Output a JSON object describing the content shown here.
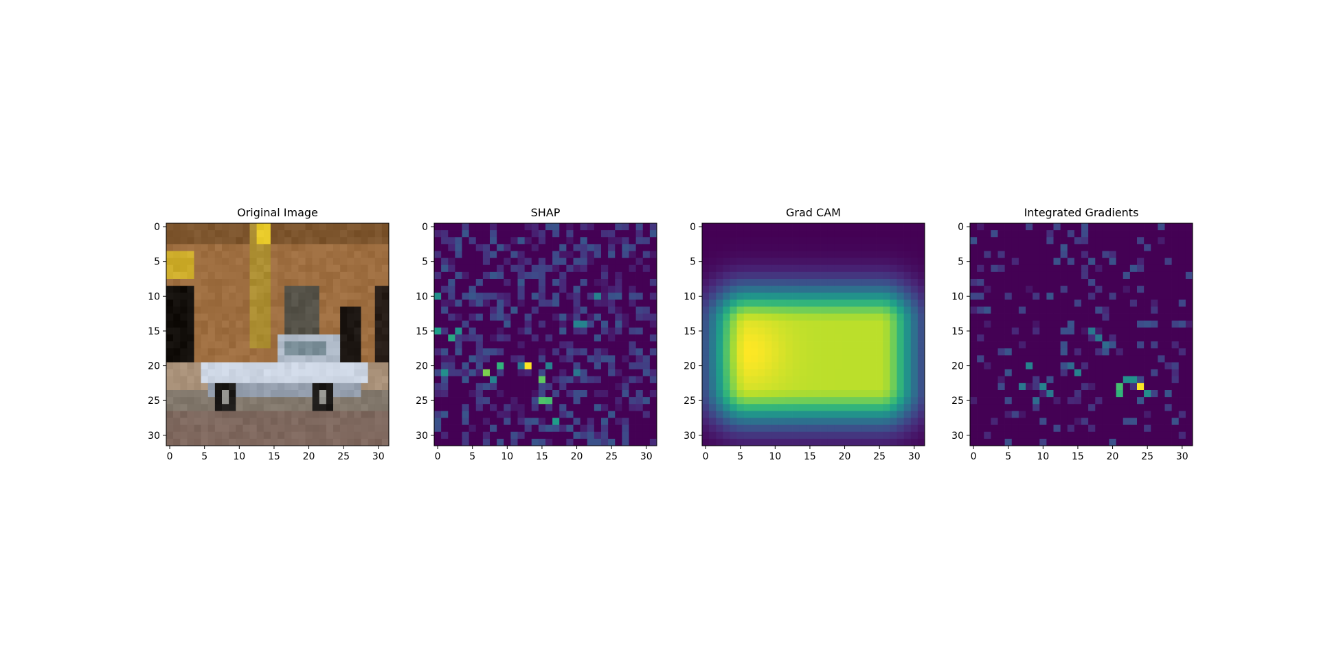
{
  "figure": {
    "background": "#ffffff"
  },
  "chart_data": [
    {
      "type": "heatmap",
      "title": "Original Image",
      "content": "image",
      "grid": false,
      "xlim": [
        -0.5,
        31.5
      ],
      "ylim": [
        31.5,
        -0.5
      ],
      "xticks": [
        0,
        5,
        10,
        15,
        20,
        25,
        30
      ],
      "yticks": [
        0,
        5,
        10,
        15,
        20,
        25,
        30
      ],
      "xtick_labels": [
        "0",
        "5",
        "10",
        "15",
        "20",
        "25",
        "30"
      ],
      "ytick_labels": [
        "0",
        "5",
        "10",
        "15",
        "20",
        "25",
        "30"
      ]
    },
    {
      "type": "heatmap",
      "title": "SHAP",
      "content": "sparse-attribution",
      "colormap": "viridis",
      "grid": false,
      "xlim": [
        -0.5,
        31.5
      ],
      "ylim": [
        31.5,
        -0.5
      ],
      "xticks": [
        0,
        5,
        10,
        15,
        20,
        25,
        30
      ],
      "yticks": [
        0,
        5,
        10,
        15,
        20,
        25,
        30
      ],
      "xtick_labels": [
        "0",
        "5",
        "10",
        "15",
        "20",
        "25",
        "30"
      ],
      "ytick_labels": [
        "0",
        "5",
        "10",
        "15",
        "20",
        "25",
        "30"
      ],
      "hotspots": [
        {
          "x": 13,
          "y": 20,
          "value": 1.0
        },
        {
          "x": 7,
          "y": 21,
          "value": 0.8
        },
        {
          "x": 15,
          "y": 22,
          "value": 0.75
        },
        {
          "x": 15,
          "y": 25,
          "value": 0.72
        },
        {
          "x": 16,
          "y": 25,
          "value": 0.7
        },
        {
          "x": 9,
          "y": 20,
          "value": 0.65
        },
        {
          "x": 2,
          "y": 16,
          "value": 0.6
        },
        {
          "x": 0,
          "y": 15,
          "value": 0.55
        },
        {
          "x": 17,
          "y": 28,
          "value": 0.55
        },
        {
          "x": 0,
          "y": 10,
          "value": 0.5
        },
        {
          "x": 3,
          "y": 15,
          "value": 0.5
        },
        {
          "x": 1,
          "y": 21,
          "value": 0.5
        },
        {
          "x": 20,
          "y": 14,
          "value": 0.45
        },
        {
          "x": 21,
          "y": 14,
          "value": 0.45
        },
        {
          "x": 23,
          "y": 10,
          "value": 0.45
        },
        {
          "x": 16,
          "y": 20,
          "value": 0.45
        },
        {
          "x": 8,
          "y": 22,
          "value": 0.45
        },
        {
          "x": 12,
          "y": 20,
          "value": 0.4
        },
        {
          "x": 20,
          "y": 21,
          "value": 0.4
        }
      ]
    },
    {
      "type": "heatmap",
      "title": "Grad CAM",
      "content": "smooth-attribution",
      "colormap": "viridis",
      "grid": false,
      "xlim": [
        -0.5,
        31.5
      ],
      "ylim": [
        31.5,
        -0.5
      ],
      "xticks": [
        0,
        5,
        10,
        15,
        20,
        25,
        30
      ],
      "yticks": [
        0,
        5,
        10,
        15,
        20,
        25,
        30
      ],
      "xtick_labels": [
        "0",
        "5",
        "10",
        "15",
        "20",
        "25",
        "30"
      ],
      "ytick_labels": [
        "0",
        "5",
        "10",
        "15",
        "20",
        "25",
        "30"
      ],
      "peak": {
        "x": 6,
        "y": 18
      }
    },
    {
      "type": "heatmap",
      "title": "Integrated Gradients",
      "content": "sparse-attribution",
      "colormap": "viridis",
      "grid": false,
      "xlim": [
        -0.5,
        31.5
      ],
      "ylim": [
        31.5,
        -0.5
      ],
      "xticks": [
        0,
        5,
        10,
        15,
        20,
        25,
        30
      ],
      "yticks": [
        0,
        5,
        10,
        15,
        20,
        25,
        30
      ],
      "xtick_labels": [
        "0",
        "5",
        "10",
        "15",
        "20",
        "25",
        "30"
      ],
      "ytick_labels": [
        "0",
        "5",
        "10",
        "15",
        "20",
        "25",
        "30"
      ],
      "hotspots": [
        {
          "x": 24,
          "y": 23,
          "value": 1.0
        },
        {
          "x": 21,
          "y": 23,
          "value": 0.7
        },
        {
          "x": 21,
          "y": 24,
          "value": 0.65
        },
        {
          "x": 25,
          "y": 24,
          "value": 0.5
        },
        {
          "x": 22,
          "y": 22,
          "value": 0.5
        },
        {
          "x": 23,
          "y": 22,
          "value": 0.5
        },
        {
          "x": 8,
          "y": 20,
          "value": 0.45
        },
        {
          "x": 10,
          "y": 23,
          "value": 0.45
        },
        {
          "x": 7,
          "y": 23,
          "value": 0.4
        },
        {
          "x": 11,
          "y": 24,
          "value": 0.4
        },
        {
          "x": 15,
          "y": 21,
          "value": 0.45
        },
        {
          "x": 18,
          "y": 16,
          "value": 0.4
        },
        {
          "x": 17,
          "y": 15,
          "value": 0.4
        },
        {
          "x": 14,
          "y": 20,
          "value": 0.35
        },
        {
          "x": 9,
          "y": 25,
          "value": 0.35
        },
        {
          "x": 19,
          "y": 17,
          "value": 0.35
        }
      ]
    }
  ]
}
